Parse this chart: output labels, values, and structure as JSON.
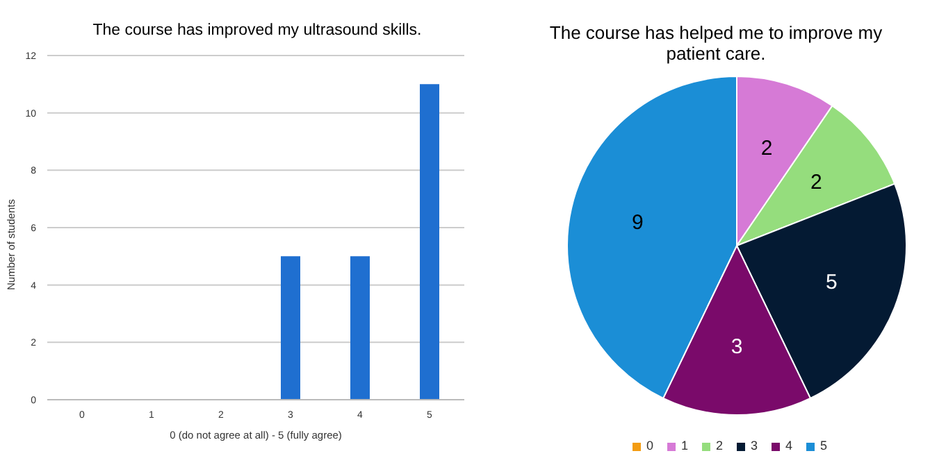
{
  "chart_data": [
    {
      "type": "bar",
      "title": "The course has improved my ultrasound skills.",
      "xlabel": "0 (do not agree at all) - 5 (fully agree)",
      "ylabel": "Number of students",
      "categories": [
        "0",
        "1",
        "2",
        "3",
        "4",
        "5"
      ],
      "values": [
        0,
        0,
        0,
        5,
        5,
        11
      ],
      "color": "#1f6fd0",
      "ylim": [
        0,
        12
      ],
      "yticks": [
        0,
        2,
        4,
        6,
        8,
        10,
        12
      ],
      "grid": "y"
    },
    {
      "type": "pie",
      "title": "The course has helped me to improve my patient care.",
      "categories": [
        "0",
        "1",
        "2",
        "3",
        "4",
        "5"
      ],
      "values": [
        0,
        2,
        2,
        5,
        3,
        9
      ],
      "colors": [
        "#f39c12",
        "#d67ad6",
        "#95dd7d",
        "#041a33",
        "#7a0a6a",
        "#1b8ed6"
      ],
      "value_labels": [
        null,
        "2",
        "2",
        "5",
        "3",
        "9"
      ],
      "legend": "bottom"
    }
  ]
}
